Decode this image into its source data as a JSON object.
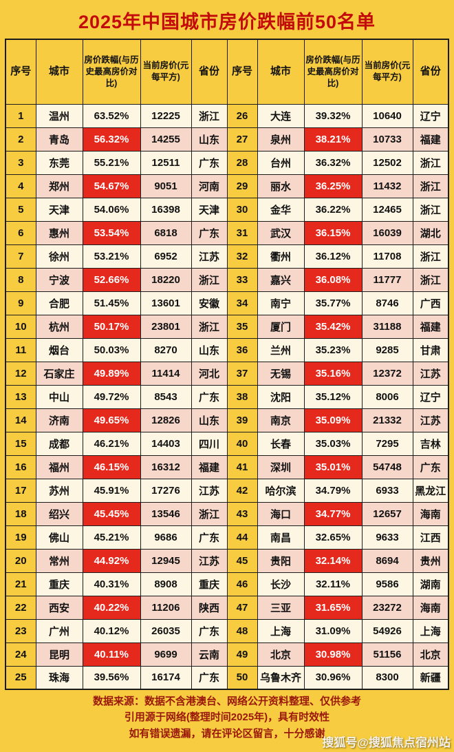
{
  "header": {
    "rank": "序号",
    "city": "城市",
    "drop": "房价跌幅(与历史最高房价对比)",
    "price": "当前房价(元每平方)",
    "province": "省份"
  },
  "footer": {
    "lines": [
      "数据来源：数据不含港澳台、网络公开资料整理、仅供参考",
      "引用源于网络(整理时间2025年)，具有时效性",
      "如有错误遗漏，请在评论区留言，十分感谢"
    ]
  },
  "watermark": "搜狐号@搜狐焦点宿州站",
  "colors": {
    "background": "#F7CC40",
    "title_red": "#C40B0B",
    "highlight_red": "#E5291D",
    "row_cream": "#FDF6E3",
    "row_pink": "#F6D7CA",
    "footer_text": "#9A170B"
  },
  "chart_data": {
    "type": "table",
    "title": "2025年中国城市房价跌幅前50名单",
    "columns": [
      "序号",
      "城市",
      "房价跌幅(与历史最高房价对比)",
      "当前房价(元每平方)",
      "省份"
    ],
    "rows": [
      {
        "rank": "1",
        "city": "温州",
        "drop": "63.52%",
        "price": "12225",
        "province": "浙江",
        "hl": false
      },
      {
        "rank": "2",
        "city": "青岛",
        "drop": "56.32%",
        "price": "14255",
        "province": "山东",
        "hl": true
      },
      {
        "rank": "3",
        "city": "东莞",
        "drop": "55.21%",
        "price": "12511",
        "province": "广东",
        "hl": false
      },
      {
        "rank": "4",
        "city": "郑州",
        "drop": "54.67%",
        "price": "9051",
        "province": "河南",
        "hl": true
      },
      {
        "rank": "5",
        "city": "天津",
        "drop": "54.06%",
        "price": "16398",
        "province": "天津",
        "hl": false
      },
      {
        "rank": "6",
        "city": "惠州",
        "drop": "53.54%",
        "price": "6818",
        "province": "广东",
        "hl": true
      },
      {
        "rank": "7",
        "city": "徐州",
        "drop": "53.21%",
        "price": "6952",
        "province": "江苏",
        "hl": false
      },
      {
        "rank": "8",
        "city": "宁波",
        "drop": "52.66%",
        "price": "18220",
        "province": "浙江",
        "hl": true
      },
      {
        "rank": "9",
        "city": "合肥",
        "drop": "51.45%",
        "price": "13601",
        "province": "安徽",
        "hl": false
      },
      {
        "rank": "10",
        "city": "杭州",
        "drop": "50.17%",
        "price": "23801",
        "province": "浙江",
        "hl": true
      },
      {
        "rank": "11",
        "city": "烟台",
        "drop": "50.03%",
        "price": "8270",
        "province": "山东",
        "hl": false
      },
      {
        "rank": "12",
        "city": "石家庄",
        "drop": "49.89%",
        "price": "11414",
        "province": "河北",
        "hl": true
      },
      {
        "rank": "13",
        "city": "中山",
        "drop": "49.72%",
        "price": "8543",
        "province": "广东",
        "hl": false
      },
      {
        "rank": "14",
        "city": "济南",
        "drop": "49.65%",
        "price": "12826",
        "province": "山东",
        "hl": true
      },
      {
        "rank": "15",
        "city": "成都",
        "drop": "46.21%",
        "price": "14403",
        "province": "四川",
        "hl": false
      },
      {
        "rank": "16",
        "city": "福州",
        "drop": "46.15%",
        "price": "16312",
        "province": "福建",
        "hl": true
      },
      {
        "rank": "17",
        "city": "苏州",
        "drop": "45.91%",
        "price": "17276",
        "province": "江苏",
        "hl": false
      },
      {
        "rank": "18",
        "city": "绍兴",
        "drop": "45.45%",
        "price": "13546",
        "province": "浙江",
        "hl": true
      },
      {
        "rank": "19",
        "city": "佛山",
        "drop": "45.21%",
        "price": "9686",
        "province": "广东",
        "hl": false
      },
      {
        "rank": "20",
        "city": "常州",
        "drop": "44.92%",
        "price": "12945",
        "province": "江苏",
        "hl": true
      },
      {
        "rank": "21",
        "city": "重庆",
        "drop": "40.31%",
        "price": "8908",
        "province": "重庆",
        "hl": false
      },
      {
        "rank": "22",
        "city": "西安",
        "drop": "40.22%",
        "price": "11206",
        "province": "陕西",
        "hl": true
      },
      {
        "rank": "23",
        "city": "广州",
        "drop": "40.12%",
        "price": "26035",
        "province": "广东",
        "hl": false
      },
      {
        "rank": "24",
        "city": "昆明",
        "drop": "40.11%",
        "price": "9699",
        "province": "云南",
        "hl": true
      },
      {
        "rank": "25",
        "city": "珠海",
        "drop": "39.56%",
        "price": "16174",
        "province": "广东",
        "hl": false
      },
      {
        "rank": "26",
        "city": "大连",
        "drop": "39.32%",
        "price": "10640",
        "province": "辽宁",
        "hl": false
      },
      {
        "rank": "27",
        "city": "泉州",
        "drop": "38.21%",
        "price": "10733",
        "province": "福建",
        "hl": true
      },
      {
        "rank": "28",
        "city": "台州",
        "drop": "36.32%",
        "price": "12502",
        "province": "浙江",
        "hl": false
      },
      {
        "rank": "29",
        "city": "丽水",
        "drop": "36.25%",
        "price": "11432",
        "province": "浙江",
        "hl": true
      },
      {
        "rank": "30",
        "city": "金华",
        "drop": "36.22%",
        "price": "12465",
        "province": "浙江",
        "hl": false
      },
      {
        "rank": "31",
        "city": "武汉",
        "drop": "36.15%",
        "price": "16039",
        "province": "湖北",
        "hl": true
      },
      {
        "rank": "32",
        "city": "衢州",
        "drop": "36.12%",
        "price": "11708",
        "province": "浙江",
        "hl": false
      },
      {
        "rank": "33",
        "city": "嘉兴",
        "drop": "36.08%",
        "price": "11777",
        "province": "浙江",
        "hl": true
      },
      {
        "rank": "34",
        "city": "南宁",
        "drop": "35.77%",
        "price": "8746",
        "province": "广西",
        "hl": false
      },
      {
        "rank": "35",
        "city": "厦门",
        "drop": "35.42%",
        "price": "31188",
        "province": "福建",
        "hl": true
      },
      {
        "rank": "36",
        "city": "兰州",
        "drop": "35.23%",
        "price": "9285",
        "province": "甘肃",
        "hl": false
      },
      {
        "rank": "37",
        "city": "无锡",
        "drop": "35.16%",
        "price": "12372",
        "province": "江苏",
        "hl": true
      },
      {
        "rank": "38",
        "city": "沈阳",
        "drop": "35.12%",
        "price": "8006",
        "province": "辽宁",
        "hl": false
      },
      {
        "rank": "39",
        "city": "南京",
        "drop": "35.09%",
        "price": "21332",
        "province": "江苏",
        "hl": true
      },
      {
        "rank": "40",
        "city": "长春",
        "drop": "35.03%",
        "price": "7295",
        "province": "吉林",
        "hl": false
      },
      {
        "rank": "41",
        "city": "深圳",
        "drop": "35.01%",
        "price": "54748",
        "province": "广东",
        "hl": true
      },
      {
        "rank": "42",
        "city": "哈尔滨",
        "drop": "34.79%",
        "price": "6933",
        "province": "黑龙江",
        "hl": false
      },
      {
        "rank": "43",
        "city": "海口",
        "drop": "34.77%",
        "price": "12657",
        "province": "海南",
        "hl": true
      },
      {
        "rank": "44",
        "city": "南昌",
        "drop": "32.65%",
        "price": "9633",
        "province": "江西",
        "hl": false
      },
      {
        "rank": "45",
        "city": "贵阳",
        "drop": "32.14%",
        "price": "8694",
        "province": "贵州",
        "hl": true
      },
      {
        "rank": "46",
        "city": "长沙",
        "drop": "32.11%",
        "price": "9586",
        "province": "湖南",
        "hl": false
      },
      {
        "rank": "47",
        "city": "三亚",
        "drop": "31.65%",
        "price": "23272",
        "province": "海南",
        "hl": true
      },
      {
        "rank": "48",
        "city": "上海",
        "drop": "31.09%",
        "price": "54926",
        "province": "上海",
        "hl": false
      },
      {
        "rank": "49",
        "city": "北京",
        "drop": "30.98%",
        "price": "51156",
        "province": "北京",
        "hl": true
      },
      {
        "rank": "50",
        "city": "乌鲁木齐",
        "drop": "30.96%",
        "price": "8300",
        "province": "新疆",
        "hl": false
      }
    ]
  }
}
